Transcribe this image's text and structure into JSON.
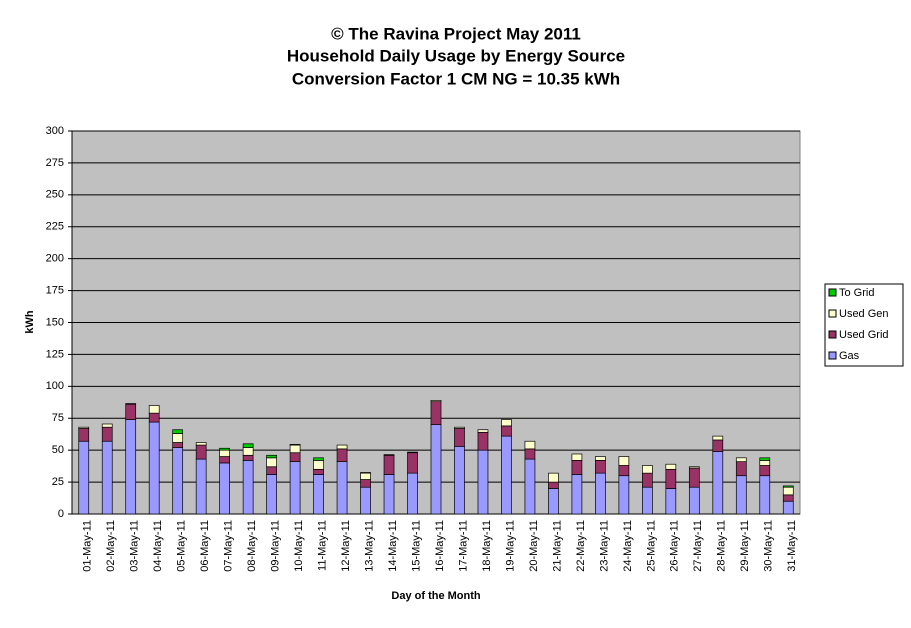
{
  "chart_data": {
    "type": "stacked-bar",
    "title": [
      "© The Ravina Project May 2011",
      "Household Daily Usage by Energy Source",
      "Conversion Factor 1 CM NG = 10.35 kWh"
    ],
    "x_label": "Day of the Month",
    "y_label": "kWh",
    "categories": [
      "01-May-11",
      "02-May-11",
      "03-May-11",
      "04-May-11",
      "05-May-11",
      "06-May-11",
      "07-May-11",
      "08-May-11",
      "09-May-11",
      "10-May-11",
      "11-May-11",
      "12-May-11",
      "13-May-11",
      "14-May-11",
      "15-May-11",
      "16-May-11",
      "17-May-11",
      "18-May-11",
      "19-May-11",
      "20-May-11",
      "21-May-11",
      "22-May-11",
      "23-May-11",
      "24-May-11",
      "25-May-11",
      "26-May-11",
      "27-May-11",
      "28-May-11",
      "29-May-11",
      "30-May-11",
      "31-May-11"
    ],
    "series": [
      {
        "name": "Gas",
        "color": "#9999ff",
        "values": [
          57,
          57,
          74,
          72,
          52,
          43,
          40,
          42,
          31,
          41,
          31,
          41,
          21,
          31,
          32,
          70,
          53,
          50,
          61,
          43,
          20,
          31,
          32,
          30,
          21,
          20,
          21,
          49,
          30,
          30,
          10
        ]
      },
      {
        "name": "Used Grid",
        "color": "#993366",
        "values": [
          10,
          11,
          12,
          7,
          4,
          11,
          5,
          4,
          6,
          7,
          4,
          10,
          6,
          15,
          16,
          18,
          14,
          14,
          8,
          8,
          5,
          11,
          10,
          8,
          11,
          15,
          15,
          9,
          11,
          8,
          5
        ]
      },
      {
        "name": "Used Gen",
        "color": "#ffffcc",
        "values": [
          1,
          2.5,
          0.5,
          6,
          7,
          2,
          5,
          6,
          7,
          6,
          7,
          3,
          5,
          0.5,
          0.5,
          1,
          1,
          2,
          5,
          6,
          7,
          5,
          3,
          7,
          6,
          4,
          1,
          3,
          3,
          4,
          6
        ]
      },
      {
        "name": "To Grid",
        "color": "#00cc00",
        "values": [
          0,
          0,
          0,
          0,
          3,
          0,
          1.5,
          3,
          2,
          0.5,
          2,
          0,
          0.5,
          0,
          0,
          0,
          0,
          0,
          0,
          0,
          0,
          0,
          0,
          0,
          0,
          0,
          0,
          0,
          0,
          2,
          1
        ]
      }
    ],
    "ylim": [
      0,
      300
    ],
    "yticks": [
      0,
      25,
      50,
      75,
      100,
      125,
      150,
      175,
      200,
      225,
      250,
      275,
      300
    ],
    "grid": true,
    "legend": "right"
  }
}
